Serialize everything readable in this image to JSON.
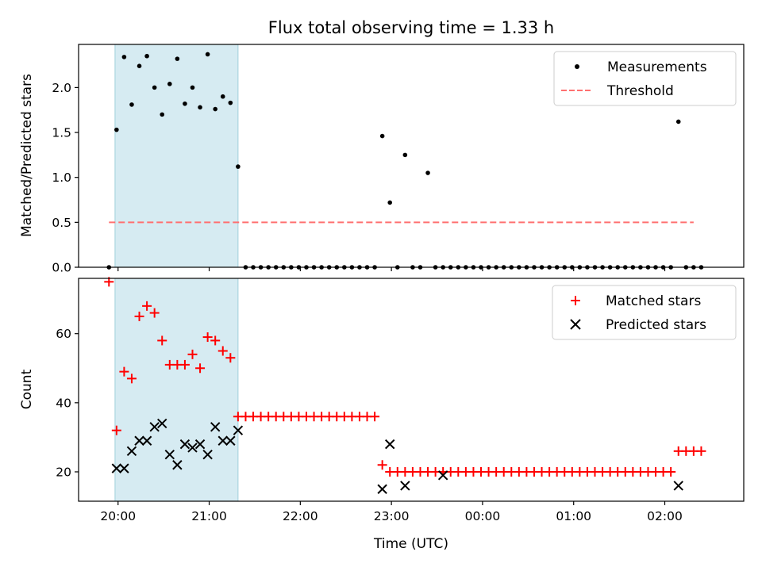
{
  "chart_data": [
    {
      "type": "scatter",
      "title": "Flux total observing time = 1.33 h",
      "ylabel": "Matched/Predicted stars",
      "xlabel": "",
      "xlim": [
        "19:34",
        "02:52"
      ],
      "ylim": [
        0,
        2.48
      ],
      "yticks": [
        "0.0",
        "0.5",
        "1.0",
        "1.5",
        "2.0"
      ],
      "legend_position": "top-right",
      "shaded_interval": {
        "start": "19:58",
        "end": "21:19",
        "color": "#add8e6"
      },
      "series": [
        {
          "name": "Measurements",
          "marker": "dot",
          "color": "#000000",
          "x": [
            "19:54",
            "19:59",
            "20:04",
            "20:09",
            "20:14",
            "20:19",
            "20:24",
            "20:29",
            "20:34",
            "20:39",
            "20:44",
            "20:49",
            "20:54",
            "20:59",
            "21:04",
            "21:09",
            "21:14",
            "21:19",
            "21:24",
            "21:29",
            "21:34",
            "21:39",
            "21:44",
            "21:49",
            "21:54",
            "21:59",
            "22:04",
            "22:09",
            "22:14",
            "22:19",
            "22:24",
            "22:29",
            "22:34",
            "22:39",
            "22:44",
            "22:49",
            "22:54",
            "22:59",
            "23:04",
            "23:09",
            "23:14",
            "23:19",
            "23:24",
            "23:29",
            "23:34",
            "23:39",
            "23:44",
            "23:49",
            "23:54",
            "23:59",
            "00:04",
            "00:09",
            "00:14",
            "00:19",
            "00:24",
            "00:29",
            "00:34",
            "00:39",
            "00:44",
            "00:49",
            "00:54",
            "00:59",
            "01:04",
            "01:09",
            "01:14",
            "01:19",
            "01:24",
            "01:29",
            "01:34",
            "01:39",
            "01:44",
            "01:49",
            "01:54",
            "01:59",
            "02:04",
            "02:09",
            "02:14",
            "02:19",
            "02:24"
          ],
          "y": [
            0,
            1.53,
            2.34,
            1.81,
            2.24,
            2.35,
            2.0,
            1.7,
            2.04,
            2.32,
            1.82,
            2.0,
            1.78,
            2.37,
            1.76,
            1.9,
            1.83,
            1.12,
            0,
            0,
            0,
            0,
            0,
            0,
            0,
            0,
            0,
            0,
            0,
            0,
            0,
            0,
            0,
            0,
            0,
            0,
            1.46,
            0.72,
            0,
            1.25,
            0,
            0,
            1.05,
            0,
            0,
            0,
            0,
            0,
            0,
            0,
            0,
            0,
            0,
            0,
            0,
            0,
            0,
            0,
            0,
            0,
            0,
            0,
            0,
            0,
            0,
            0,
            0,
            0,
            0,
            0,
            0,
            0,
            0,
            0,
            0,
            1.62,
            0,
            0,
            0
          ]
        },
        {
          "name": "Threshold",
          "style": "dashed",
          "color": "#ff7070",
          "x": [
            "19:54",
            "02:19"
          ],
          "y": [
            0.5,
            0.5
          ]
        }
      ]
    },
    {
      "type": "scatter",
      "title": "",
      "ylabel": "Count",
      "xlabel": "Time (UTC)",
      "xlim": [
        "19:34",
        "02:52"
      ],
      "ylim": [
        11.5,
        76
      ],
      "yticks": [
        "20",
        "40",
        "60"
      ],
      "xticks": [
        "20:00",
        "21:00",
        "22:00",
        "23:00",
        "00:00",
        "01:00",
        "02:00"
      ],
      "legend_position": "top-right",
      "shaded_interval": {
        "start": "19:58",
        "end": "21:19",
        "color": "#add8e6"
      },
      "series": [
        {
          "name": "Matched stars",
          "marker": "plus",
          "color": "#ff0000",
          "x": [
            "19:54",
            "19:59",
            "20:04",
            "20:09",
            "20:14",
            "20:19",
            "20:24",
            "20:29",
            "20:34",
            "20:39",
            "20:44",
            "20:49",
            "20:54",
            "20:59",
            "21:04",
            "21:09",
            "21:14",
            "21:19",
            "21:24",
            "21:29",
            "21:34",
            "21:39",
            "21:44",
            "21:49",
            "21:54",
            "21:59",
            "22:04",
            "22:09",
            "22:14",
            "22:19",
            "22:24",
            "22:29",
            "22:34",
            "22:39",
            "22:44",
            "22:49",
            "22:54",
            "22:59",
            "23:04",
            "23:09",
            "23:14",
            "23:19",
            "23:24",
            "23:29",
            "23:34",
            "23:39",
            "23:44",
            "23:49",
            "23:54",
            "23:59",
            "00:04",
            "00:09",
            "00:14",
            "00:19",
            "00:24",
            "00:29",
            "00:34",
            "00:39",
            "00:44",
            "00:49",
            "00:54",
            "00:59",
            "01:04",
            "01:09",
            "01:14",
            "01:19",
            "01:24",
            "01:29",
            "01:34",
            "01:39",
            "01:44",
            "01:49",
            "01:54",
            "01:59",
            "02:04",
            "02:09",
            "02:14",
            "02:19",
            "02:24"
          ],
          "y": [
            75,
            32,
            49,
            47,
            65,
            68,
            66,
            58,
            51,
            51,
            51,
            54,
            50,
            59,
            58,
            55,
            53,
            36,
            36,
            36,
            36,
            36,
            36,
            36,
            36,
            36,
            36,
            36,
            36,
            36,
            36,
            36,
            36,
            36,
            36,
            36,
            22,
            20,
            20,
            20,
            20,
            20,
            20,
            20,
            20,
            20,
            20,
            20,
            20,
            20,
            20,
            20,
            20,
            20,
            20,
            20,
            20,
            20,
            20,
            20,
            20,
            20,
            20,
            20,
            20,
            20,
            20,
            20,
            20,
            20,
            20,
            20,
            20,
            20,
            20,
            26,
            26,
            26,
            26
          ]
        },
        {
          "name": "Predicted stars",
          "marker": "x",
          "color": "#000000",
          "x": [
            "19:59",
            "20:04",
            "20:09",
            "20:14",
            "20:19",
            "20:24",
            "20:29",
            "20:34",
            "20:39",
            "20:44",
            "20:49",
            "20:54",
            "20:59",
            "21:04",
            "21:09",
            "21:14",
            "21:19",
            "22:54",
            "22:59",
            "23:09",
            "23:34",
            "02:09"
          ],
          "y": [
            21,
            21,
            26,
            29,
            29,
            33,
            34,
            25,
            22,
            28,
            27,
            28,
            25,
            33,
            29,
            29,
            32,
            15,
            28,
            16,
            19,
            16
          ]
        }
      ]
    }
  ]
}
